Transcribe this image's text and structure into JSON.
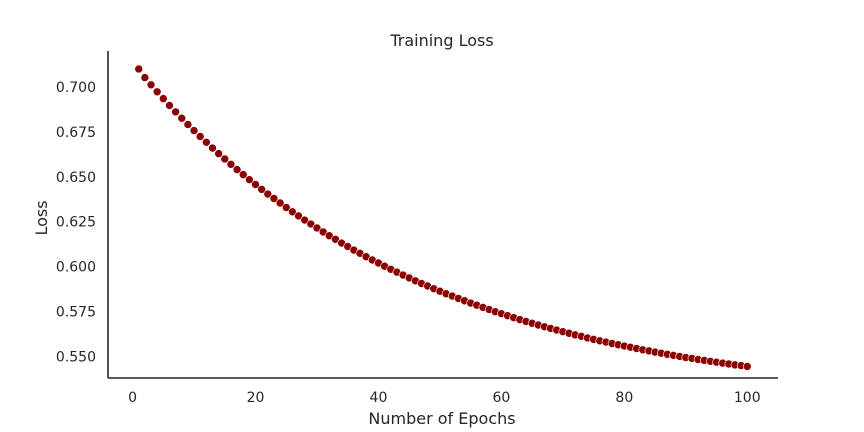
{
  "chart_data": {
    "type": "scatter",
    "title": "Training Loss",
    "xlabel": "Number of Epochs",
    "ylabel": "Loss",
    "xlim": [
      -4,
      105
    ],
    "ylim": [
      0.538,
      0.72
    ],
    "x_ticks": [
      0,
      20,
      40,
      60,
      80,
      100
    ],
    "y_ticks": [
      0.55,
      0.575,
      0.6,
      0.625,
      0.65,
      0.675,
      0.7
    ],
    "x_tick_labels": [
      "0",
      "20",
      "40",
      "60",
      "80",
      "100"
    ],
    "y_tick_labels": [
      "0.550",
      "0.575",
      "0.600",
      "0.625",
      "0.650",
      "0.675",
      "0.700"
    ],
    "grid": false,
    "marker_color": "#8b0000",
    "series": [
      {
        "x": [
          1,
          2,
          3,
          4,
          5,
          6,
          7,
          8,
          9,
          10,
          11,
          12,
          13,
          14,
          15,
          16,
          17,
          18,
          19,
          20,
          21,
          22,
          23,
          24,
          25,
          26,
          27,
          28,
          29,
          30,
          31,
          32,
          33,
          34,
          35,
          36,
          37,
          38,
          39,
          40,
          41,
          42,
          43,
          44,
          45,
          46,
          47,
          48,
          49,
          50,
          51,
          52,
          53,
          54,
          55,
          56,
          57,
          58,
          59,
          60,
          61,
          62,
          63,
          64,
          65,
          66,
          67,
          68,
          69,
          70,
          71,
          72,
          73,
          74,
          75,
          76,
          77,
          78,
          79,
          80,
          81,
          82,
          83,
          84,
          85,
          86,
          87,
          88,
          89,
          90,
          91,
          92,
          93,
          94,
          95,
          96,
          97,
          98,
          99,
          100
        ],
        "values": [
          0.71,
          0.7052,
          0.7012,
          0.6973,
          0.6935,
          0.6897,
          0.6861,
          0.6826,
          0.6791,
          0.6757,
          0.6724,
          0.6692,
          0.666,
          0.6629,
          0.6599,
          0.6569,
          0.654,
          0.6512,
          0.6484,
          0.6457,
          0.643,
          0.6404,
          0.6379,
          0.6354,
          0.6329,
          0.6305,
          0.6282,
          0.6259,
          0.6237,
          0.6215,
          0.6193,
          0.6172,
          0.6152,
          0.6131,
          0.6112,
          0.6092,
          0.6074,
          0.6055,
          0.6037,
          0.602,
          0.6002,
          0.5985,
          0.5969,
          0.5953,
          0.5937,
          0.5921,
          0.5906,
          0.5892,
          0.5877,
          0.5863,
          0.5849,
          0.5836,
          0.5823,
          0.581,
          0.5797,
          0.5785,
          0.5773,
          0.5761,
          0.5749,
          0.5738,
          0.5727,
          0.5716,
          0.5705,
          0.5695,
          0.5685,
          0.5675,
          0.5665,
          0.5656,
          0.5647,
          0.5638,
          0.5629,
          0.562,
          0.5612,
          0.5603,
          0.5595,
          0.5587,
          0.558,
          0.5572,
          0.5565,
          0.5558,
          0.5551,
          0.5544,
          0.5537,
          0.5531,
          0.5524,
          0.5518,
          0.5512,
          0.5506,
          0.55,
          0.5494,
          0.5489,
          0.5483,
          0.5478,
          0.5473,
          0.5468,
          0.5463,
          0.5458,
          0.5453,
          0.5449,
          0.5444
        ]
      }
    ]
  }
}
